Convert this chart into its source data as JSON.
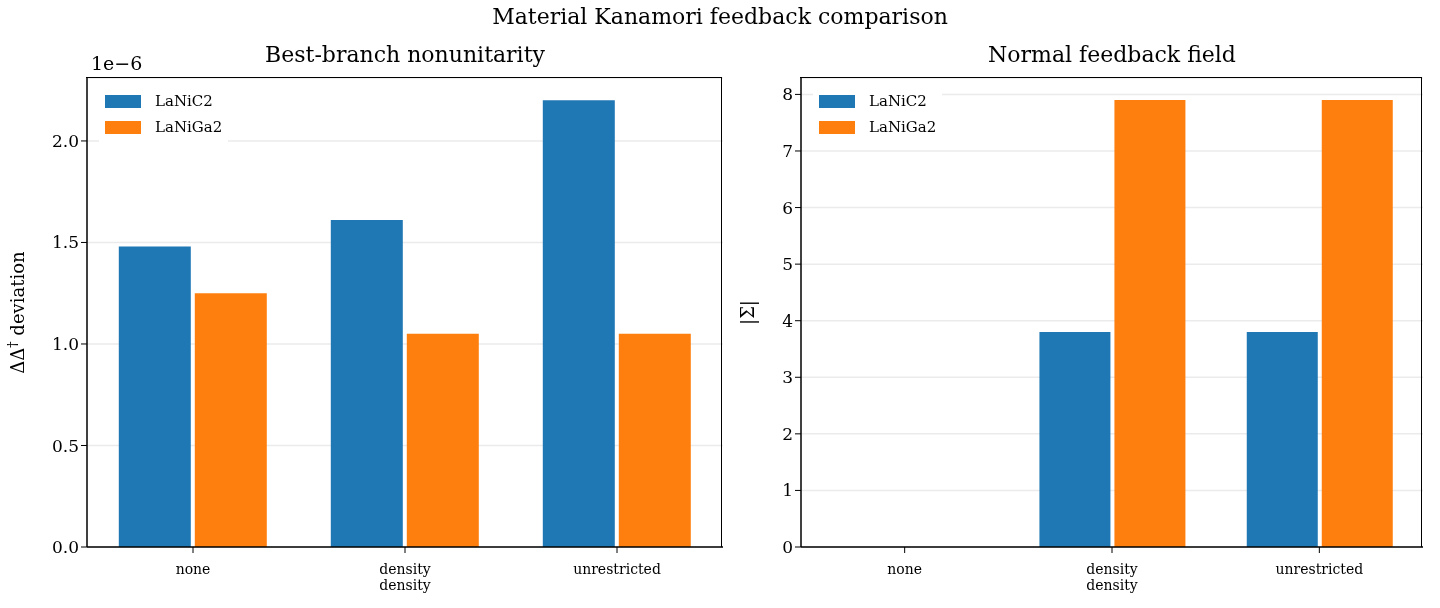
{
  "chart_data": [
    {
      "type": "bar",
      "title": "Best-branch nonunitarity",
      "ylabel": "ΔΔ$^{†}$ deviation",
      "annotations": [
        "Material Kanamori feedback comparison",
        "1e−6"
      ],
      "categories": [
        "none",
        "density\ndensity",
        "unrestricted"
      ],
      "series": [
        {
          "name": "LaNiC2",
          "color": "#1f77b4",
          "values": [
            1.48,
            1.61,
            2.2
          ]
        },
        {
          "name": "LaNiGa2",
          "color": "#ff7f0e",
          "values": [
            1.25,
            1.05,
            1.05
          ]
        }
      ],
      "ylim": [
        0,
        2.31
      ],
      "yticks": [
        {
          "value": 0,
          "label": "0.0"
        },
        0.5,
        {
          "value": 1,
          "label": "1.0"
        },
        1.5,
        {
          "value": 2,
          "label": "2.0"
        }
      ],
      "grid": "y",
      "legend": "top left"
    },
    {
      "type": "bar",
      "title": "Normal feedback field",
      "ylabel": "|Σ|",
      "categories": [
        "none",
        "density\ndensity",
        "unrestricted"
      ],
      "series": [
        {
          "name": "LaNiC2",
          "color": "#1f77b4",
          "values": [
            0,
            3.8,
            3.8
          ]
        },
        {
          "name": "LaNiGa2",
          "color": "#ff7f0e",
          "values": [
            0,
            7.9,
            7.9
          ]
        }
      ],
      "ylim": [
        0,
        8.29
      ],
      "yticks": [
        0,
        1,
        2,
        3,
        4,
        5,
        6,
        7,
        8
      ],
      "grid": "y",
      "legend": "top left"
    }
  ]
}
